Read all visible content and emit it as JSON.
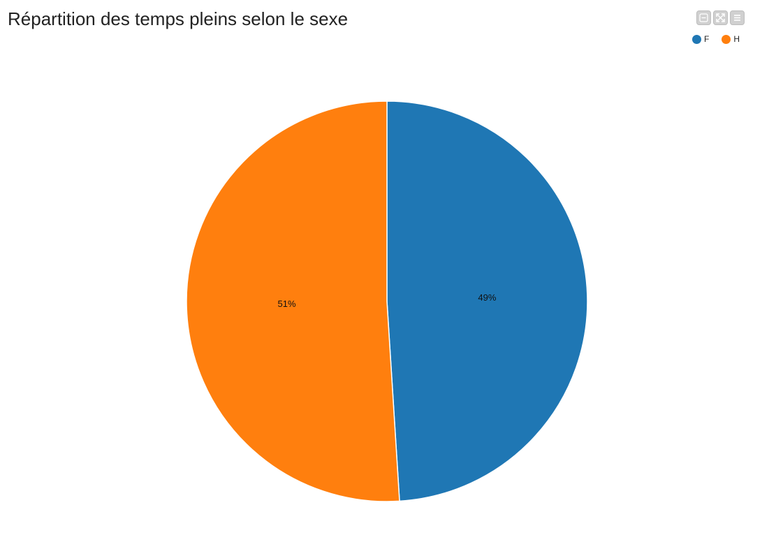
{
  "title": "Répartition des temps pleins selon le sexe",
  "toolbar": {
    "buttons": [
      {
        "icon": "collapse-icon"
      },
      {
        "icon": "expand-icon"
      },
      {
        "icon": "menu-icon"
      }
    ]
  },
  "legend": {
    "placement": "top-right",
    "items": [
      {
        "label": "F",
        "color": "#1f77b4"
      },
      {
        "label": "H",
        "color": "#ff7f0e"
      }
    ]
  },
  "chart_data": {
    "type": "pie",
    "title": "Répartition des temps pleins selon le sexe",
    "slices": [
      {
        "label": "F",
        "value": 49,
        "display": "49%",
        "color": "#1f77b4"
      },
      {
        "label": "H",
        "value": 51,
        "display": "51%",
        "color": "#ff7f0e"
      }
    ],
    "legend": "top-right"
  }
}
